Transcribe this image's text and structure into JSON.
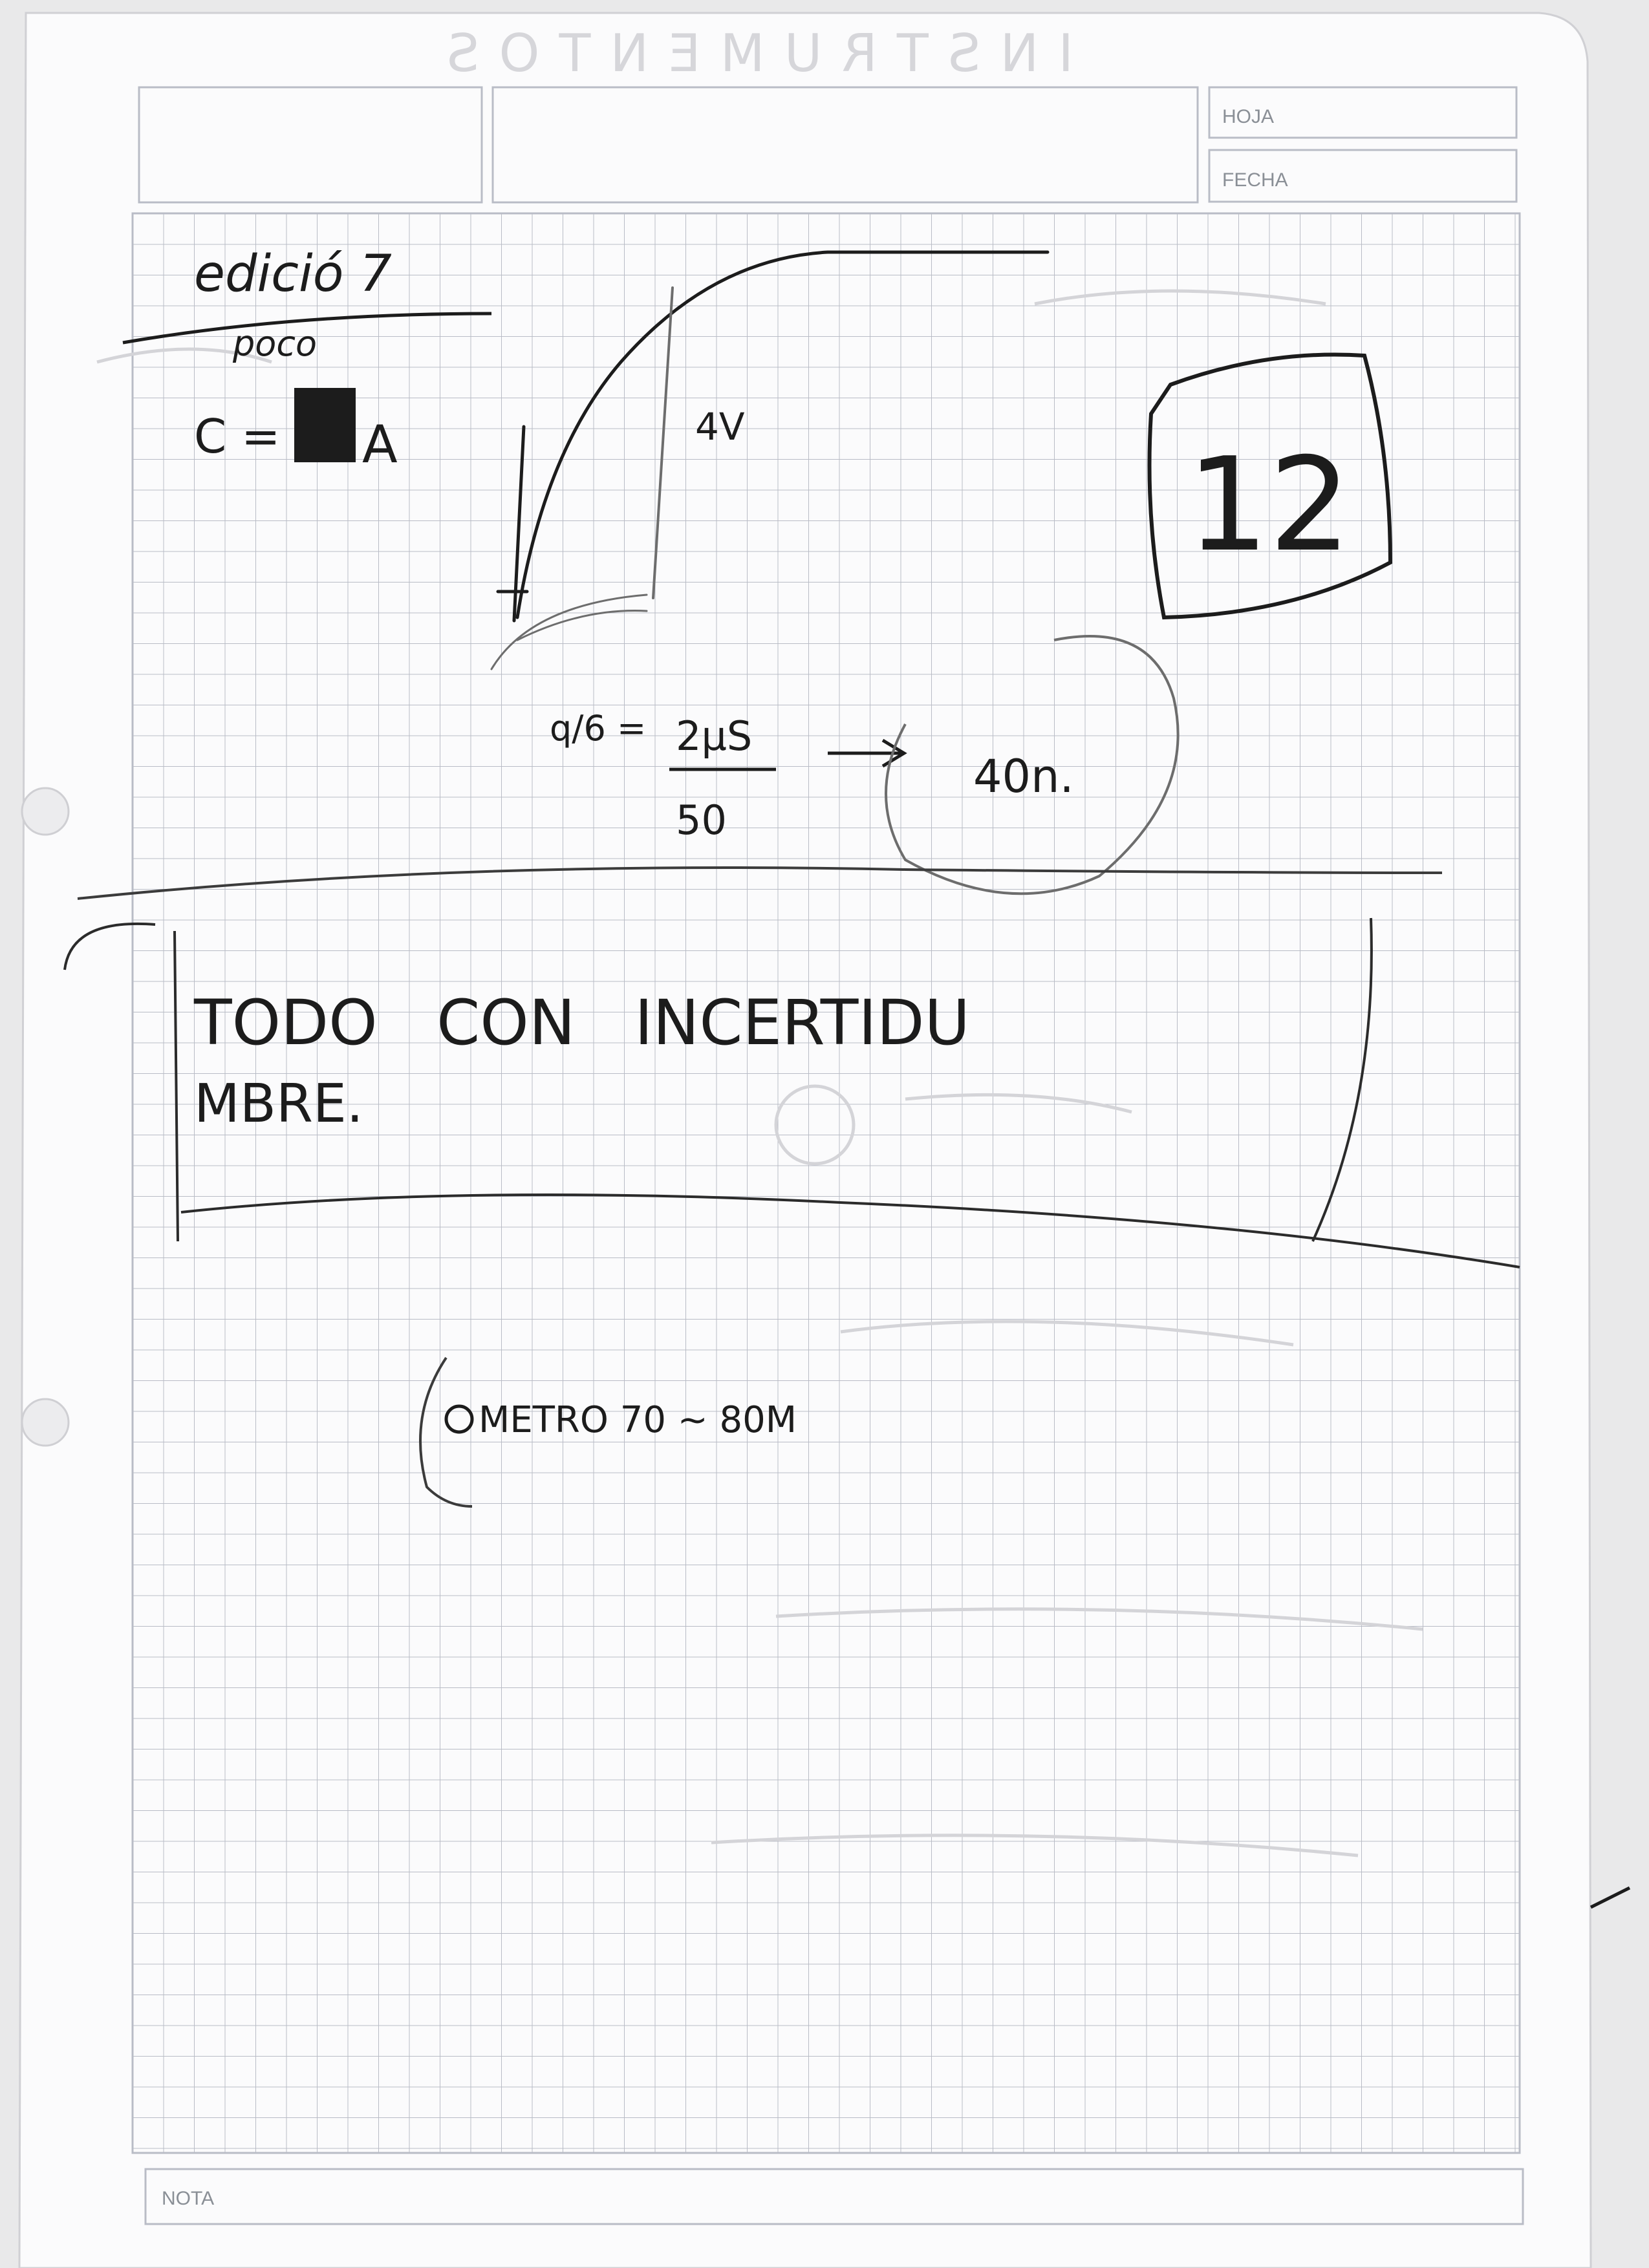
{
  "header": {
    "hoja_label": "HOJA",
    "fecha_label": "FECHA",
    "bleed_through_text": "INSTRUMENTOS"
  },
  "footer": {
    "nota_label": "NOTA"
  },
  "notes": {
    "title": "edició 7",
    "title_sub": "poco",
    "formula_left": "C =",
    "formula_right": "A",
    "graph_label": "4V",
    "ratio_num": "2µS",
    "ratio_den": "50",
    "ratio_left": "q/6 =",
    "result": "40n.",
    "score": "12",
    "boxed_line1": "TODO   CON   INCERTIDU",
    "boxed_line2": "MBRE.",
    "measure": "METRO 70 ~ 80M"
  },
  "colors": {
    "paper": "#fbfbfc",
    "grid": "#b9bcc6",
    "ink": "#1c1c1c",
    "pencil": "#6d6d6d"
  }
}
